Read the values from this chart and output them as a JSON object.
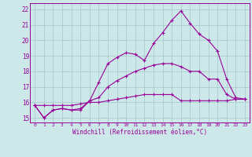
{
  "bg_color": "#cce8e8",
  "grid_color": "#aacccc",
  "line_color": "#990099",
  "xlabel": "Windchill (Refroidissement éolien,°C)",
  "ylabel_ticks": [
    15,
    16,
    17,
    18,
    19,
    20,
    21,
    22
  ],
  "xlim": [
    -0.5,
    23.5
  ],
  "ylim": [
    14.7,
    22.4
  ],
  "xticks": [
    0,
    1,
    2,
    3,
    4,
    5,
    6,
    7,
    8,
    9,
    10,
    11,
    12,
    13,
    14,
    15,
    16,
    17,
    18,
    19,
    20,
    21,
    22,
    23
  ],
  "series": [
    [
      15.8,
      15.0,
      15.5,
      15.6,
      15.5,
      15.6,
      16.1,
      17.3,
      18.5,
      18.9,
      19.2,
      19.1,
      18.7,
      19.8,
      20.5,
      21.3,
      21.9,
      21.1,
      20.4,
      20.0,
      19.3,
      17.5,
      16.3,
      16.2
    ],
    [
      15.8,
      15.0,
      15.5,
      15.6,
      15.5,
      15.5,
      16.1,
      16.3,
      17.0,
      17.4,
      17.7,
      18.0,
      18.2,
      18.4,
      18.5,
      18.5,
      18.3,
      18.0,
      18.0,
      17.5,
      17.5,
      16.5,
      16.2,
      16.2
    ],
    [
      15.8,
      15.8,
      15.8,
      15.8,
      15.8,
      15.9,
      16.0,
      16.0,
      16.1,
      16.2,
      16.3,
      16.4,
      16.5,
      16.5,
      16.5,
      16.5,
      16.1,
      16.1,
      16.1,
      16.1,
      16.1,
      16.1,
      16.2,
      16.2
    ]
  ]
}
